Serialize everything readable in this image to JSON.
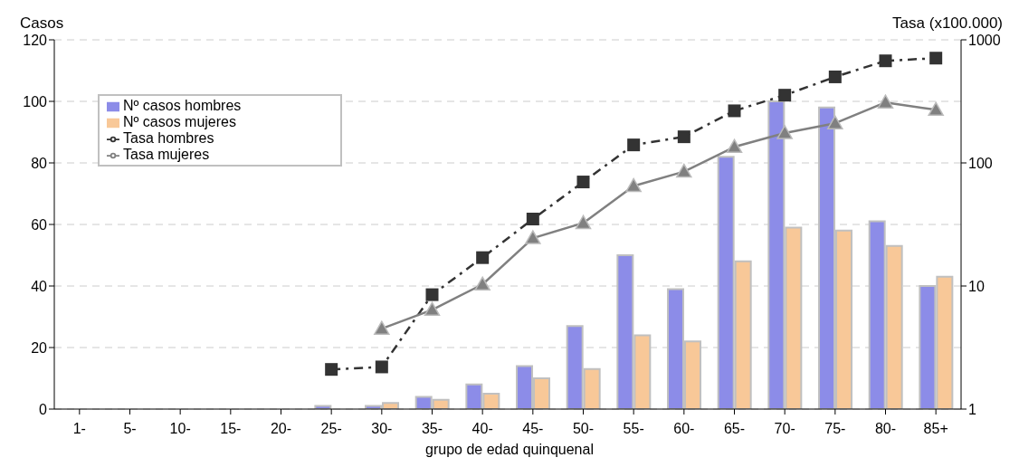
{
  "chart_data": {
    "type": "bar",
    "xlabel": "grupo de edad quinquenal",
    "ylabel": "Casos",
    "y2label": "Tasa (x100.000)",
    "categories": [
      "1-",
      "5-",
      "10-",
      "15-",
      "20-",
      "25-",
      "30-",
      "35-",
      "40-",
      "45-",
      "50-",
      "55-",
      "60-",
      "65-",
      "70-",
      "75-",
      "80-",
      "85+"
    ],
    "series": [
      {
        "name": "Nº casos hombres",
        "color": "#8c8ce8",
        "values": [
          0,
          0,
          0,
          0,
          0,
          1,
          1,
          4,
          8,
          14,
          27,
          50,
          39,
          82,
          100,
          98,
          61,
          40
        ]
      },
      {
        "name": "Nº casos mujeres",
        "color": "#f8c898",
        "values": [
          0,
          0,
          0,
          0,
          0,
          0,
          2,
          3,
          5,
          10,
          13,
          24,
          22,
          48,
          59,
          58,
          53,
          43
        ]
      },
      {
        "name": "Tasa hombres",
        "type": "line",
        "axis": "y2",
        "color": "#333333",
        "marker": "square",
        "line_style": "dashed",
        "values": [
          null,
          null,
          null,
          null,
          null,
          2.1,
          2.2,
          8.5,
          17,
          35,
          70,
          140,
          163,
          265,
          355,
          500,
          675,
          710
        ]
      },
      {
        "name": "Tasa mujeres",
        "type": "line",
        "axis": "y2",
        "color": "#808080",
        "marker": "triangle",
        "line_style": "solid",
        "values": [
          null,
          null,
          null,
          null,
          null,
          null,
          4.5,
          6.4,
          10.3,
          24.5,
          32.5,
          65,
          85,
          135,
          175,
          210,
          310,
          270
        ]
      }
    ],
    "ylim": [
      0,
      120
    ],
    "yticks": [
      0,
      20,
      40,
      60,
      80,
      100,
      120
    ],
    "y2lim": [
      1,
      1000
    ],
    "y2ticks": [
      1,
      10,
      100,
      1000
    ],
    "log": "y2",
    "grid": "y",
    "legend": "top left"
  }
}
